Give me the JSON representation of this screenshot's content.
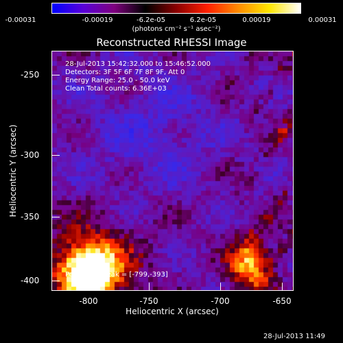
{
  "colorbar": {
    "ticks": [
      "-0.00031",
      "-0.00019",
      "-6.2e-05",
      "6.2e-05",
      "0.00019",
      "0.00031"
    ],
    "unit": "(photons cm⁻² s⁻¹ asec⁻²)",
    "colors": [
      "#0000ff",
      "#5a00d8",
      "#7f007f",
      "#000000",
      "#8a0000",
      "#ff2000",
      "#ff8c00",
      "#ffe600",
      "#ffffff"
    ]
  },
  "chart_data": {
    "type": "heatmap",
    "title": "Reconstructed RHESSI Image",
    "xlabel": "Heliocentric X (arcsec)",
    "ylabel": "Heliocentric Y (arcsec)",
    "xlim": [
      -830,
      -633
    ],
    "ylim": [
      -410,
      -215
    ],
    "x_ticks": [
      "-800",
      "-750",
      "-700",
      "-650"
    ],
    "y_ticks": [
      "-250",
      "-300",
      "-350",
      "-400"
    ],
    "peak": [
      -799,
      -393
    ],
    "clim": [
      -0.00031,
      0.00031
    ]
  },
  "info": {
    "time_range": "28-Jul-2013 15:42:32.000 to 15:46:52.000",
    "detectors": "Detectors: 3F 5F 6F 7F 8F 9F, Att 0",
    "energy": "Energy Range: 25.0 - 50.0 keV",
    "clean": "Clean     Total counts: 6.36E+03",
    "peak_label": "Position of Peak = [-799,-393]"
  },
  "timestamp": "28-Jul-2013 11:49"
}
